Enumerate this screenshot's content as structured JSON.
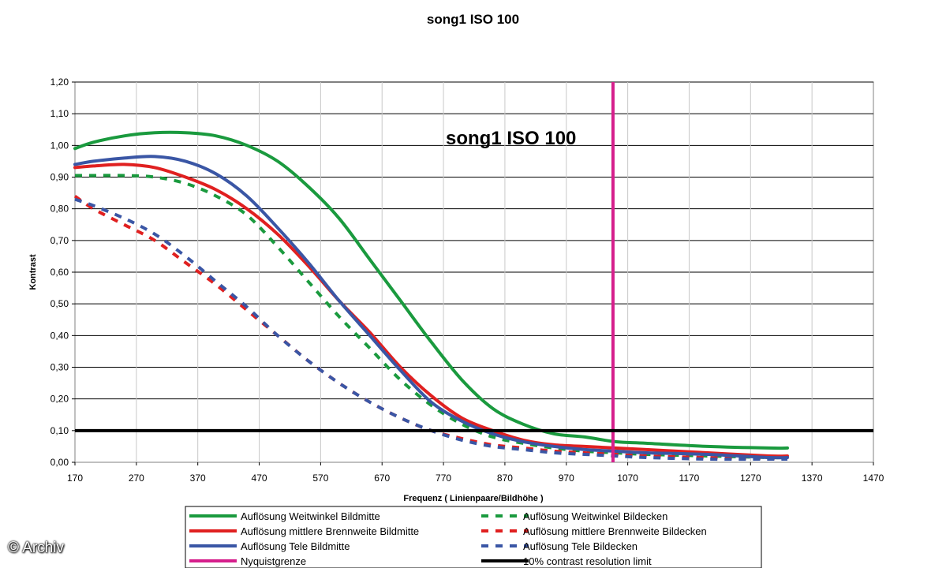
{
  "title": "song1 ISO 100",
  "watermark": "© Archiv",
  "chart_data": {
    "type": "line",
    "title": "song1 ISO 100",
    "inner_title": "song1 ISO 100",
    "xlabel": "Frequenz ( Linienpaare/Bildhöhe )",
    "ylabel": "Kontrast",
    "xlim": [
      170,
      1470
    ],
    "ylim": [
      0,
      1.2
    ],
    "xticks": [
      "170",
      "270",
      "370",
      "470",
      "570",
      "670",
      "770",
      "870",
      "970",
      "1070",
      "1170",
      "1270",
      "1370",
      "1470"
    ],
    "yticks": [
      "0,00",
      "0,10",
      "0,20",
      "0,30",
      "0,40",
      "0,50",
      "0,60",
      "0,70",
      "0,80",
      "0,90",
      "1,00",
      "1,10",
      "1,20"
    ],
    "grid": true,
    "legend_position": "bottom",
    "series": [
      {
        "name": "Auflösung Weitwinkel Bildmitte",
        "color": "#1a9a3e",
        "style": "solid",
        "x": [
          170,
          200,
          250,
          300,
          350,
          400,
          450,
          500,
          550,
          600,
          650,
          700,
          750,
          800,
          850,
          900,
          950,
          1000,
          1050,
          1100,
          1200,
          1300,
          1330
        ],
        "y": [
          0.99,
          1.01,
          1.03,
          1.04,
          1.04,
          1.03,
          1.0,
          0.95,
          0.87,
          0.77,
          0.64,
          0.51,
          0.38,
          0.26,
          0.17,
          0.12,
          0.09,
          0.08,
          0.065,
          0.06,
          0.05,
          0.045,
          0.045
        ]
      },
      {
        "name": "Auflösung Weitwinkel Bildecken",
        "color": "#1a9a3e",
        "style": "dashed",
        "x": [
          170,
          200,
          250,
          300,
          350,
          400,
          450,
          500,
          550,
          600,
          650,
          700,
          750,
          800,
          850,
          900,
          950,
          1000,
          1050,
          1100,
          1200,
          1300,
          1330
        ],
        "y": [
          0.905,
          0.905,
          0.905,
          0.9,
          0.88,
          0.84,
          0.78,
          0.68,
          0.57,
          0.46,
          0.36,
          0.26,
          0.18,
          0.12,
          0.08,
          0.06,
          0.045,
          0.035,
          0.03,
          0.025,
          0.02,
          0.015,
          0.015
        ]
      },
      {
        "name": "Auflösung mittlere Brennweite Bildmitte",
        "color": "#e02020",
        "style": "solid",
        "x": [
          170,
          200,
          250,
          300,
          350,
          400,
          450,
          500,
          550,
          600,
          650,
          700,
          750,
          800,
          850,
          900,
          950,
          1000,
          1050,
          1100,
          1200,
          1300,
          1330
        ],
        "y": [
          0.93,
          0.935,
          0.94,
          0.93,
          0.9,
          0.86,
          0.8,
          0.72,
          0.62,
          0.51,
          0.41,
          0.3,
          0.21,
          0.14,
          0.1,
          0.07,
          0.055,
          0.05,
          0.045,
          0.04,
          0.03,
          0.02,
          0.02
        ]
      },
      {
        "name": "Auflösung mittlere Brennweite Bildecken",
        "color": "#e02020",
        "style": "dashed",
        "x": [
          170,
          200,
          250,
          300,
          350,
          400,
          450,
          500,
          550,
          600,
          650,
          700,
          750,
          800,
          850,
          900,
          950,
          1000,
          1050,
          1100,
          1200,
          1300,
          1330
        ],
        "y": [
          0.84,
          0.8,
          0.75,
          0.7,
          0.63,
          0.56,
          0.48,
          0.4,
          0.32,
          0.25,
          0.19,
          0.14,
          0.1,
          0.075,
          0.055,
          0.045,
          0.035,
          0.03,
          0.025,
          0.02,
          0.015,
          0.012,
          0.012
        ]
      },
      {
        "name": "Auflösung Tele Bildmitte",
        "color": "#3a56a5",
        "style": "solid",
        "x": [
          170,
          200,
          250,
          300,
          350,
          400,
          450,
          500,
          550,
          600,
          650,
          700,
          750,
          800,
          850,
          900,
          950,
          1000,
          1050,
          1100,
          1200,
          1300,
          1330
        ],
        "y": [
          0.94,
          0.95,
          0.96,
          0.965,
          0.95,
          0.91,
          0.84,
          0.74,
          0.63,
          0.51,
          0.4,
          0.29,
          0.19,
          0.13,
          0.09,
          0.065,
          0.05,
          0.04,
          0.035,
          0.03,
          0.025,
          0.015,
          0.015
        ]
      },
      {
        "name": "Auflösung Tele Bildecken",
        "color": "#3a56a5",
        "style": "dashed",
        "x": [
          170,
          200,
          250,
          300,
          350,
          400,
          450,
          500,
          550,
          600,
          650,
          700,
          750,
          800,
          850,
          900,
          950,
          1000,
          1050,
          1100,
          1200,
          1300,
          1330
        ],
        "y": [
          0.83,
          0.81,
          0.77,
          0.72,
          0.65,
          0.57,
          0.49,
          0.4,
          0.32,
          0.25,
          0.19,
          0.14,
          0.1,
          0.07,
          0.05,
          0.04,
          0.03,
          0.025,
          0.02,
          0.015,
          0.01,
          0.01,
          0.01
        ]
      }
    ],
    "reference_lines": [
      {
        "name": "Nyquistgrenze",
        "color": "#d61f8c",
        "orientation": "vertical",
        "value": 1046
      },
      {
        "name": "10% contrast resolution limit",
        "color": "#000000",
        "orientation": "horizontal",
        "value": 0.1
      }
    ],
    "legend_entries": [
      {
        "label": "Auflösung Weitwinkel Bildmitte",
        "color": "#1a9a3e",
        "style": "solid"
      },
      {
        "label": "Auflösung Weitwinkel Bildecken",
        "color": "#1a9a3e",
        "style": "dashed"
      },
      {
        "label": "Auflösung mittlere Brennweite Bildmitte",
        "color": "#e02020",
        "style": "solid"
      },
      {
        "label": "Auflösung mittlere Brennweite Bildecken",
        "color": "#e02020",
        "style": "dashed"
      },
      {
        "label": "Auflösung Tele Bildmitte",
        "color": "#3a56a5",
        "style": "solid"
      },
      {
        "label": "Auflösung Tele Bildecken",
        "color": "#3a56a5",
        "style": "dashed"
      },
      {
        "label": "Nyquistgrenze",
        "color": "#d61f8c",
        "style": "solid"
      },
      {
        "label": "10% contrast resolution limit",
        "color": "#000000",
        "style": "solid"
      }
    ]
  }
}
